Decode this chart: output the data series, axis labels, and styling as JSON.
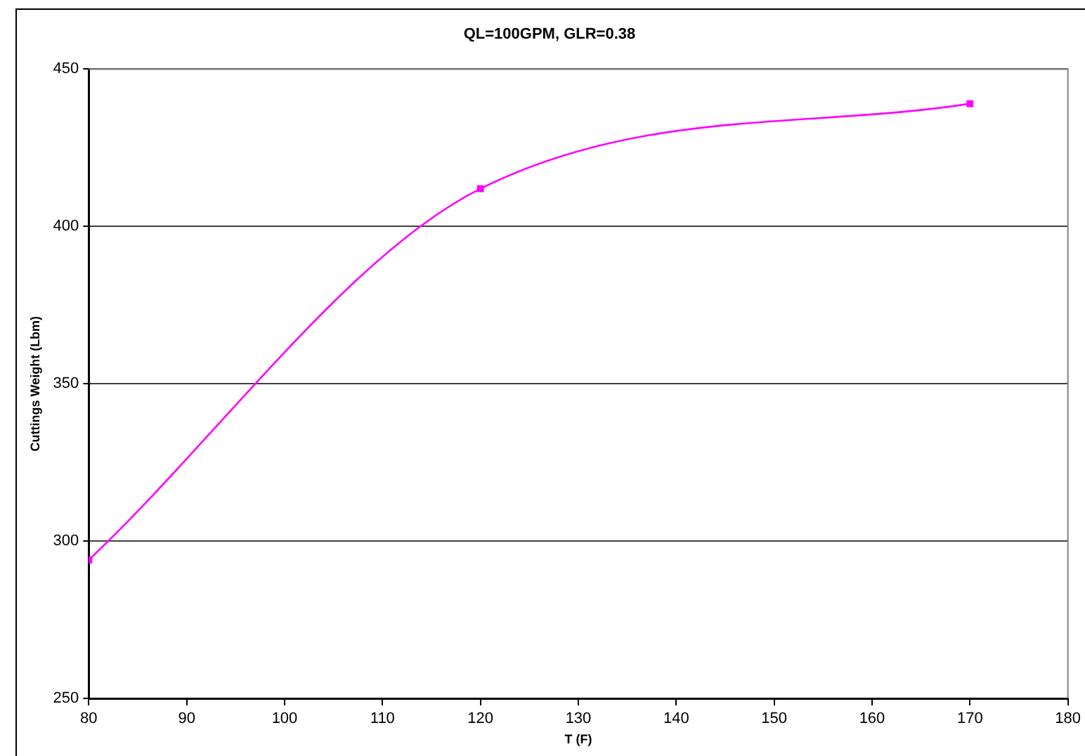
{
  "chart_data": {
    "type": "line",
    "title": "QL=100GPM, GLR=0.38",
    "xlabel": "T (F)",
    "ylabel": "Cuttings Weight (Lbm)",
    "x": [
      80,
      120,
      170
    ],
    "series": [
      {
        "color": "#ff00ff",
        "values": [
          294,
          412,
          439
        ]
      }
    ],
    "xlim": [
      80,
      180
    ],
    "xticks": [
      80,
      90,
      100,
      110,
      120,
      130,
      140,
      150,
      160,
      170,
      180
    ],
    "ylim": [
      250,
      450
    ],
    "yticks": [
      250,
      300,
      350,
      400,
      450
    ],
    "grid": "y",
    "legend": false,
    "marker": "square",
    "line_style": "solid"
  }
}
